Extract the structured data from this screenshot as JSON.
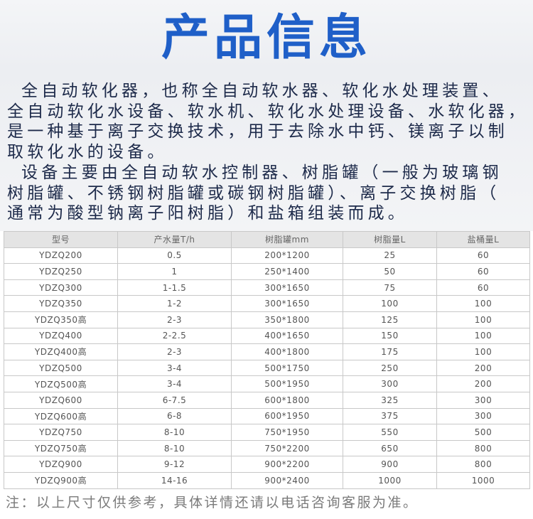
{
  "header": {
    "title": "产品信息"
  },
  "intro": {
    "paragraphs": [
      [
        "全自动软化器，也称全自动软水器、软化水处理装置、",
        "全自动软化水设备、软水机、软化水处理设备、水软化器，",
        "是一种基于离子交换技术，用于去除水中钙、镁离子以制",
        "取软化水的设备。"
      ],
      [
        "设备主要由全自动软水控制器、树脂罐（一般为玻璃钢",
        "树脂罐、不锈钢树脂罐或碳钢树脂罐）、离子交换树脂（",
        "通常为酸型钠离子阳树脂）和盐箱组装而成。"
      ]
    ]
  },
  "table": {
    "columns": [
      "型号",
      "产水量T/h",
      "树脂罐mm",
      "树脂量L",
      "盐桶量L"
    ],
    "rows": [
      [
        "YDZQ200",
        "0.5",
        "200*1200",
        "25",
        "60"
      ],
      [
        "YDZQ250",
        "1",
        "250*1400",
        "50",
        "60"
      ],
      [
        "YDZQ300",
        "1-1.5",
        "300*1650",
        "75",
        "60"
      ],
      [
        "YDZQ350",
        "1-2",
        "300*1650",
        "100",
        "100"
      ],
      [
        "YDZQ350高",
        "2-3",
        "350*1800",
        "125",
        "100"
      ],
      [
        "YDZQ400",
        "2-2.5",
        "400*1650",
        "150",
        "100"
      ],
      [
        "YDZQ400高",
        "2-3",
        "400*1800",
        "175",
        "100"
      ],
      [
        "YDZQ500",
        "3-4",
        "500*1750",
        "250",
        "200"
      ],
      [
        "YDZQ500高",
        "3-4",
        "500*1950",
        "300",
        "200"
      ],
      [
        "YDZQ600",
        "6-7.5",
        "600*1800",
        "325",
        "300"
      ],
      [
        "YDZQ600高",
        "6-8",
        "600*1950",
        "375",
        "300"
      ],
      [
        "YDZQ750",
        "8-10",
        "750*1950",
        "550",
        "500"
      ],
      [
        "YDZQ750高",
        "8-10",
        "750*2200",
        "650",
        "800"
      ],
      [
        "YDZQ900",
        "9-12",
        "900*2200",
        "900",
        "800"
      ],
      [
        "YDZQ900高",
        "14-16",
        "900*2400",
        "1000",
        "1000"
      ]
    ]
  },
  "footer": {
    "note": "注：以上尺寸仅供参考，具体详情还请以电话咨询客服为准。"
  }
}
